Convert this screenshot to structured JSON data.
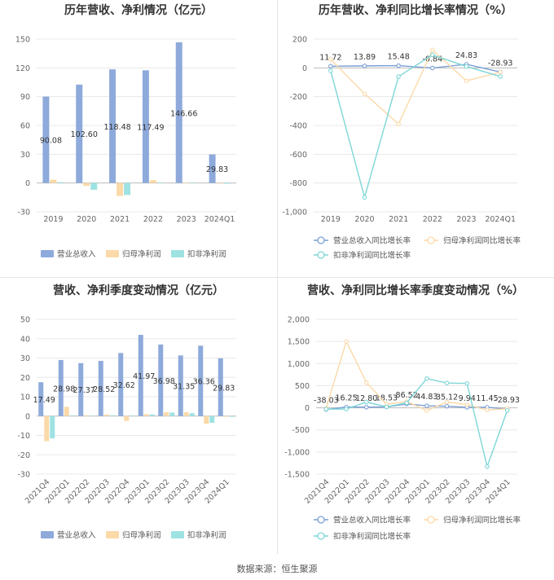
{
  "source_text": "数据来源：恒生聚源",
  "chart_data": [
    {
      "id": "annual_bar",
      "type": "bar",
      "title": "历年营收、净利情况（亿元）",
      "categories": [
        "2019",
        "2020",
        "2021",
        "2022",
        "2023",
        "2024Q1"
      ],
      "ylim": [
        -30,
        150
      ],
      "yticks": [
        -30,
        0,
        30,
        60,
        90,
        120,
        150
      ],
      "series": [
        {
          "name": "营业总收入",
          "color": "#8eaadb",
          "values": [
            90.08,
            102.6,
            118.48,
            117.49,
            146.66,
            29.83
          ],
          "labels": [
            "90.08",
            "102.60",
            "118.48",
            "117.49",
            "146.66",
            "29.83"
          ]
        },
        {
          "name": "归母净利润",
          "color": "#fbd9a9",
          "values": [
            3.5,
            -3.0,
            -13.5,
            3.0,
            0.3,
            -0.5
          ]
        },
        {
          "name": "扣非净利润",
          "color": "#9ee2e2",
          "values": [
            0.8,
            -7.0,
            -12.5,
            0.6,
            0.3,
            -0.7
          ]
        }
      ]
    },
    {
      "id": "annual_line",
      "type": "line",
      "title": "历年营收、净利同比增长率情况（%）",
      "categories": [
        "2019",
        "2020",
        "2021",
        "2022",
        "2023",
        "2024Q1"
      ],
      "ylim": [
        -1000,
        200
      ],
      "yticks": [
        -1000,
        -800,
        -600,
        -400,
        -200,
        0,
        200
      ],
      "series": [
        {
          "name": "营业总收入同比增长率",
          "color": "#7b9fd6",
          "values": [
            11.72,
            13.89,
            15.48,
            -0.84,
            24.83,
            -28.93
          ],
          "labels": [
            "11.72",
            "13.89",
            "15.48",
            "-0.84",
            "24.83",
            "-28.93"
          ]
        },
        {
          "name": "归母净利润同比增长率",
          "color": "#fbd9a9",
          "values": [
            60,
            -180,
            -390,
            125,
            -90,
            -30
          ]
        },
        {
          "name": "扣非净利润同比增长率",
          "color": "#7ed6d6",
          "values": [
            -20,
            -900,
            -60,
            90,
            10,
            -60
          ]
        }
      ]
    },
    {
      "id": "quarter_bar",
      "type": "bar",
      "title": "营收、净利季度变动情况（亿元）",
      "categories": [
        "2021Q4",
        "2022Q1",
        "2022Q2",
        "2022Q3",
        "2022Q4",
        "2023Q1",
        "2023Q2",
        "2023Q3",
        "2023Q4",
        "2024Q1"
      ],
      "ylim": [
        -30,
        50
      ],
      "yticks": [
        -30,
        -20,
        -10,
        0,
        10,
        20,
        30,
        40,
        50
      ],
      "series": [
        {
          "name": "营业总收入",
          "color": "#8eaadb",
          "values": [
            17.49,
            28.98,
            27.37,
            28.52,
            32.62,
            41.97,
            36.98,
            31.35,
            36.36,
            29.83
          ],
          "labels": [
            "17.49",
            "28.98",
            "27.37",
            "28.52",
            "32.62",
            "41.97",
            "36.98",
            "31.35",
            "36.36",
            "29.83"
          ]
        },
        {
          "name": "归母净利润",
          "color": "#fbd9a9",
          "values": [
            -13.0,
            4.8,
            0.4,
            0.8,
            -2.5,
            1.0,
            2.0,
            2.0,
            -4.0,
            -0.4
          ]
        },
        {
          "name": "扣非净利润",
          "color": "#9ee2e2",
          "values": [
            -11.5,
            0.3,
            0.2,
            0.4,
            0.3,
            0.8,
            1.8,
            1.5,
            -3.5,
            -0.4
          ]
        }
      ]
    },
    {
      "id": "quarter_line",
      "type": "line",
      "title": "营收、净利同比增长率季度变动情况（%）",
      "categories": [
        "2021Q4",
        "2022Q1",
        "2022Q2",
        "2022Q3",
        "2022Q4",
        "2023Q1",
        "2023Q2",
        "2023Q3",
        "2023Q4",
        "2024Q1"
      ],
      "ylim": [
        -1500,
        2000
      ],
      "yticks": [
        -1500,
        -1000,
        -500,
        0,
        500,
        1000,
        1500,
        2000
      ],
      "series": [
        {
          "name": "营业总收入同比增长率",
          "color": "#7b9fd6",
          "values": [
            -38.03,
            16.25,
            12.8,
            18.53,
            86.52,
            44.83,
            35.12,
            9.94,
            11.45,
            -28.93
          ],
          "labels": [
            "-38.03",
            "16.25",
            "12.80",
            "18.53",
            "86.52",
            "44.83",
            "35.12",
            "9.94",
            "11.45",
            "-28.93"
          ]
        },
        {
          "name": "归母净利润同比增长率",
          "color": "#fbd9a9",
          "values": [
            -10,
            1500,
            570,
            80,
            140,
            -60,
            130,
            70,
            -50,
            -20
          ]
        },
        {
          "name": "扣非净利润同比增长率",
          "color": "#7ed6d6",
          "values": [
            -30,
            -30,
            130,
            20,
            110,
            660,
            560,
            550,
            -1330,
            -60
          ]
        }
      ]
    }
  ]
}
